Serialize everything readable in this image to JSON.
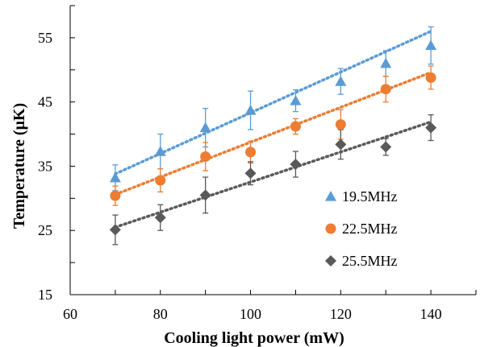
{
  "chart_data": {
    "type": "scatter",
    "xlabel": "Cooling light power (mW)",
    "ylabel": "Temperature (μK)",
    "xlim": [
      60,
      150
    ],
    "ylim": [
      15,
      60
    ],
    "xticks": [
      60,
      80,
      100,
      120,
      140
    ],
    "yticks": [
      15,
      25,
      35,
      45,
      55
    ],
    "legend_position": "center-right",
    "grid": false,
    "series": [
      {
        "name": "19.5MHz",
        "marker": "triangle",
        "color": "#5b9bd5",
        "x": [
          70,
          80,
          90,
          100,
          110,
          120,
          130,
          140
        ],
        "y": [
          33.2,
          37.3,
          41.0,
          43.7,
          45.2,
          48.2,
          51.0,
          53.8
        ],
        "err": [
          2.0,
          2.7,
          3.0,
          3.0,
          1.7,
          2.0,
          2.0,
          2.9
        ],
        "trend": [
          33.8,
          56.0
        ]
      },
      {
        "name": "22.5MHz",
        "marker": "circle",
        "color": "#ed7d31",
        "x": [
          70,
          80,
          90,
          100,
          110,
          120,
          130,
          140
        ],
        "y": [
          30.4,
          32.8,
          36.5,
          37.2,
          41.2,
          41.5,
          47.0,
          48.8
        ],
        "err": [
          1.5,
          1.8,
          2.2,
          1.7,
          1.2,
          2.3,
          2.0,
          1.8
        ],
        "trend": [
          30.6,
          49.6
        ]
      },
      {
        "name": "25.5MHz",
        "marker": "diamond",
        "color": "#595959",
        "x": [
          70,
          80,
          90,
          100,
          110,
          120,
          130,
          140
        ],
        "y": [
          25.1,
          27.0,
          30.5,
          33.9,
          35.3,
          38.4,
          38.0,
          41.0
        ],
        "err": [
          2.3,
          2.0,
          2.8,
          1.8,
          2.0,
          2.3,
          1.3,
          2.0
        ],
        "trend": [
          25.5,
          41.9
        ]
      }
    ]
  }
}
